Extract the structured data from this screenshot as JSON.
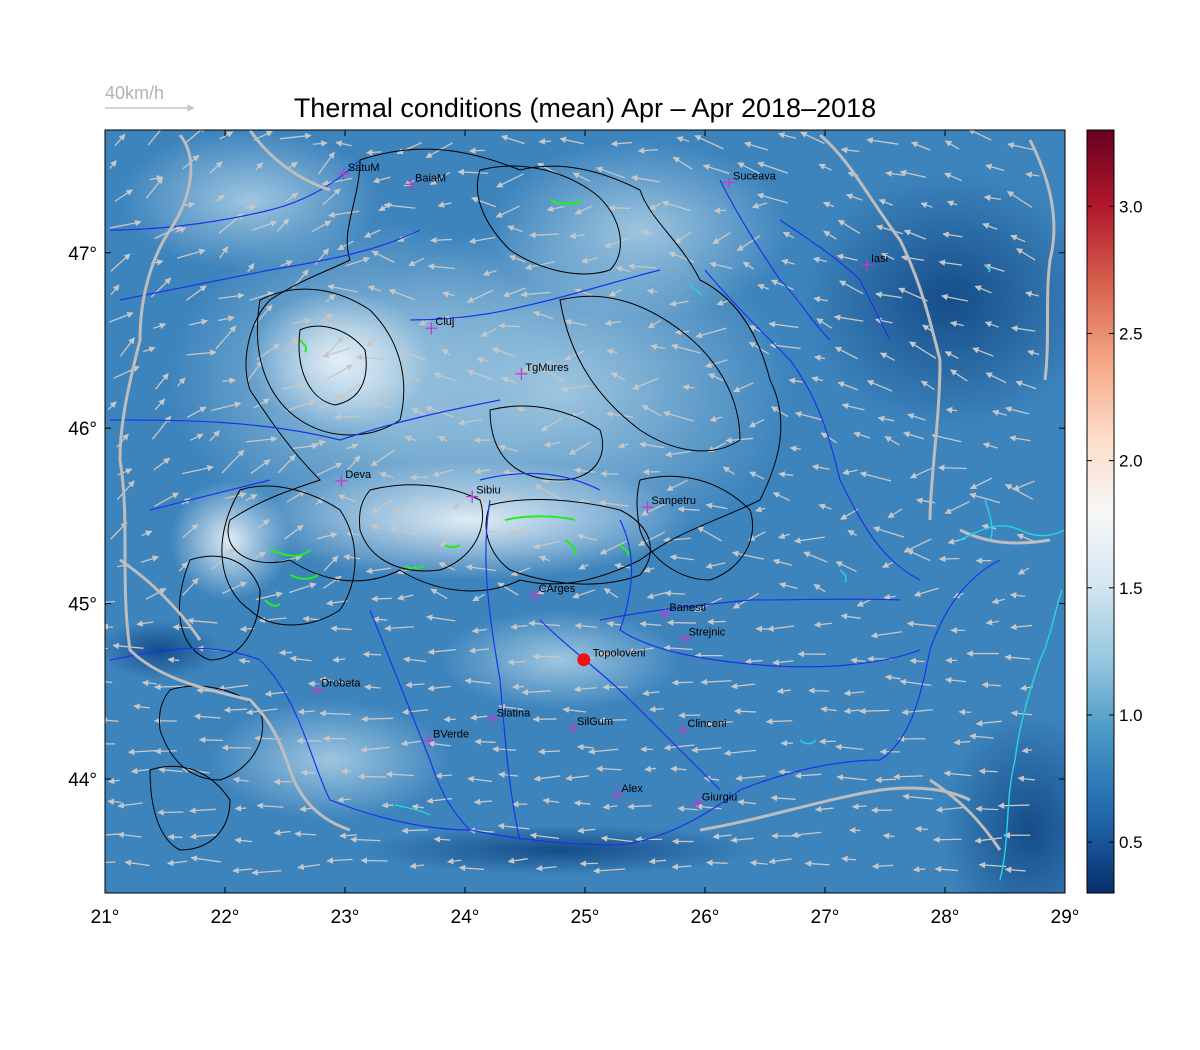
{
  "title": "Thermal conditions (mean) Apr – Apr  2018–2018",
  "wind_legend": {
    "label": "40km/h",
    "color": "#b3b3b3"
  },
  "colors": {
    "river": "#1a35e8",
    "border": "#b8b8b8",
    "contour": "#000000",
    "contour_high": "#22ee22",
    "coast": "#29d3e0",
    "city_marker": "#c03cc8",
    "highlight": "#ee1111",
    "wind_arrow": "#c7c7c7"
  },
  "map": {
    "lon_range": [
      21,
      29
    ],
    "lat_range": [
      43.35,
      47.7
    ],
    "lon_ticks": [
      {
        "v": 21,
        "label": "21°"
      },
      {
        "v": 22,
        "label": "22°"
      },
      {
        "v": 23,
        "label": "23°"
      },
      {
        "v": 24,
        "label": "24°"
      },
      {
        "v": 25,
        "label": "25°"
      },
      {
        "v": 26,
        "label": "26°"
      },
      {
        "v": 27,
        "label": "27°"
      },
      {
        "v": 28,
        "label": "28°"
      },
      {
        "v": 29,
        "label": "29°"
      }
    ],
    "lat_ticks": [
      {
        "v": 44,
        "label": "44°"
      },
      {
        "v": 45,
        "label": "45°"
      },
      {
        "v": 46,
        "label": "46°"
      },
      {
        "v": 47,
        "label": "47°"
      }
    ],
    "cities": [
      {
        "name": "SatuM",
        "lon": 22.99,
        "lat": 47.45
      },
      {
        "name": "BaiaM",
        "lon": 23.55,
        "lat": 47.39
      },
      {
        "name": "Suceava",
        "lon": 26.2,
        "lat": 47.4
      },
      {
        "name": "Iasi",
        "lon": 27.35,
        "lat": 46.93
      },
      {
        "name": "Cluj",
        "lon": 23.72,
        "lat": 46.57
      },
      {
        "name": "TgMures",
        "lon": 24.47,
        "lat": 46.31
      },
      {
        "name": "Deva",
        "lon": 22.97,
        "lat": 45.7
      },
      {
        "name": "Sibiu",
        "lon": 24.06,
        "lat": 45.61
      },
      {
        "name": "Sanpetru",
        "lon": 25.52,
        "lat": 45.55
      },
      {
        "name": "CArges",
        "lon": 24.58,
        "lat": 45.05
      },
      {
        "name": "Banesti",
        "lon": 25.67,
        "lat": 44.94
      },
      {
        "name": "Strejnic",
        "lon": 25.83,
        "lat": 44.8
      },
      {
        "name": "Topoloveni",
        "lon": 24.99,
        "lat": 44.68,
        "highlight": true
      },
      {
        "name": "Drobeta",
        "lon": 22.77,
        "lat": 44.51
      },
      {
        "name": "Slatina",
        "lon": 24.23,
        "lat": 44.34
      },
      {
        "name": "SilGum",
        "lon": 24.9,
        "lat": 44.29
      },
      {
        "name": "Clinceni",
        "lon": 25.82,
        "lat": 44.28
      },
      {
        "name": "BVerde",
        "lon": 23.7,
        "lat": 44.22
      },
      {
        "name": "Alex",
        "lon": 25.27,
        "lat": 43.91
      },
      {
        "name": "Giurgiu",
        "lon": 25.94,
        "lat": 43.86
      }
    ]
  },
  "colorbar": {
    "range": [
      0.3,
      3.3
    ],
    "ticks": [
      {
        "v": 0.5,
        "label": "0.5"
      },
      {
        "v": 1.0,
        "label": "1.0"
      },
      {
        "v": 1.5,
        "label": "1.5"
      },
      {
        "v": 2.0,
        "label": "2.0"
      },
      {
        "v": 2.5,
        "label": "2.5"
      },
      {
        "v": 3.0,
        "label": "3.0"
      }
    ],
    "stops": [
      "#08306b",
      "#2166ac",
      "#4393c3",
      "#92c5de",
      "#d1e5f0",
      "#f7f7f7",
      "#fddbc7",
      "#f4a582",
      "#d6604d",
      "#b2182b",
      "#67001f"
    ]
  }
}
